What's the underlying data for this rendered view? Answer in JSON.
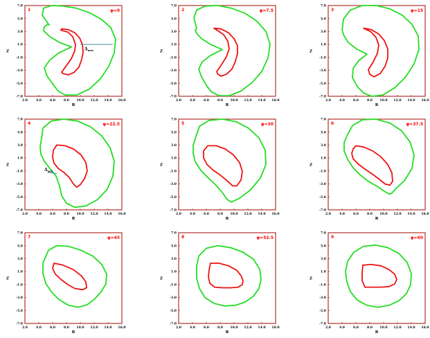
{
  "colors": {
    "frame": "#b0302a",
    "outer_contour": "#22dd22",
    "inner_contour": "#ee1111",
    "panel_label": "#ff0000",
    "annotation_line": "#4a8a9a"
  },
  "chart_data": [
    {
      "type": "line",
      "panel_number": "1",
      "phi_label": "φ=0",
      "xlabel": "R",
      "ylabel": "Z",
      "xlim": [
        2.0,
        16.0
      ],
      "ylim": [
        -7.0,
        7.0
      ],
      "xticks": [
        "2.0",
        "4.0",
        "6.0",
        "8.0",
        "10.0",
        "12.0",
        "14.0",
        "16.0"
      ],
      "yticks": [
        "-7.0",
        "-5.0",
        "-3.0",
        "-1.0",
        "1.0",
        "3.0",
        "5.0",
        "7.0"
      ],
      "annotation": {
        "text": "Δ",
        "sub": "max",
        "line": {
          "x": [
            10.0,
            14.7
          ],
          "y": [
            1.0,
            1.0
          ]
        }
      },
      "series": [
        {
          "role": "outer",
          "x": [
            5.5,
            4.5,
            4.7,
            5.9,
            7.6,
            9.4,
            11.3,
            13.0,
            14.4,
            15.1,
            14.9,
            14.1,
            12.9,
            11.3,
            9.5,
            7.8,
            6.8,
            6.1,
            5.2,
            4.8,
            5.6,
            6.9,
            8.7,
            7.0,
            5.6,
            4.7,
            4.8,
            5.3,
            5.5
          ],
          "y": [
            4.0,
            5.5,
            6.6,
            7.0,
            6.9,
            6.6,
            5.9,
            4.9,
            3.6,
            1.8,
            -0.3,
            -2.4,
            -4.3,
            -5.9,
            -6.8,
            -6.8,
            -6.2,
            -5.2,
            -3.9,
            -2.6,
            -1.4,
            -0.3,
            0.6,
            1.3,
            2.2,
            3.1,
            3.7,
            4.1,
            4.0
          ]
        },
        {
          "role": "inner",
          "x": [
            7.3,
            8.2,
            9.2,
            9.9,
            10.3,
            10.4,
            10.2,
            9.8,
            9.1,
            8.3,
            7.5,
            7.3,
            7.9,
            8.7,
            9.2,
            9.3,
            8.9,
            8.2,
            7.2,
            7.3
          ],
          "y": [
            3.4,
            3.3,
            2.8,
            2.0,
            1.0,
            -0.2,
            -1.3,
            -2.5,
            -3.3,
            -3.7,
            -3.5,
            -3.3,
            -2.4,
            -1.2,
            0.0,
            1.0,
            2.2,
            2.9,
            3.2,
            3.4
          ]
        }
      ]
    },
    {
      "type": "line",
      "panel_number": "2",
      "phi_label": "φ=7.5",
      "xlabel": "R",
      "ylabel": "Z",
      "xlim": [
        2.0,
        16.0
      ],
      "ylim": [
        -7.0,
        7.0
      ],
      "xticks": [
        "2.0",
        "4.0",
        "6.0",
        "8.0",
        "10.0",
        "12.0",
        "14.0",
        "16.0"
      ],
      "yticks": [
        "-7.0",
        "-5.0",
        "-3.0",
        "-1.0",
        "1.0",
        "3.0",
        "5.0",
        "7.0"
      ],
      "series": [
        {
          "role": "outer",
          "x": [
            4.6,
            4.2,
            4.6,
            5.8,
            7.6,
            9.6,
            11.6,
            13.3,
            14.6,
            15.2,
            14.9,
            14.0,
            12.6,
            11.0,
            9.3,
            7.8,
            6.7,
            6.0,
            5.3,
            4.9,
            5.4,
            6.6,
            8.3,
            6.6,
            5.3,
            4.6,
            4.4,
            4.6
          ],
          "y": [
            3.5,
            5.1,
            6.3,
            6.9,
            7.0,
            6.6,
            5.8,
            4.6,
            3.0,
            1.0,
            -1.1,
            -3.2,
            -4.9,
            -6.2,
            -6.9,
            -6.9,
            -6.3,
            -5.3,
            -4.0,
            -2.8,
            -1.7,
            -0.7,
            0.2,
            1.0,
            1.9,
            2.7,
            3.2,
            3.5
          ]
        },
        {
          "role": "inner",
          "x": [
            7.1,
            8.1,
            9.2,
            10.0,
            10.5,
            10.5,
            10.2,
            9.7,
            8.9,
            8.1,
            7.6,
            7.5,
            8.2,
            8.9,
            9.3,
            9.1,
            8.5,
            7.7,
            7.1
          ],
          "y": [
            3.5,
            3.4,
            2.8,
            1.9,
            0.8,
            -0.4,
            -1.6,
            -2.8,
            -3.6,
            -3.9,
            -3.5,
            -3.2,
            -2.1,
            -0.9,
            0.3,
            1.5,
            2.5,
            3.1,
            3.5
          ]
        }
      ]
    },
    {
      "type": "line",
      "panel_number": "3",
      "phi_label": "φ=15",
      "xlabel": "R",
      "ylabel": "Z",
      "xlim": [
        2.0,
        16.0
      ],
      "ylim": [
        -7.0,
        7.0
      ],
      "xticks": [
        "2.0",
        "4.0",
        "6.0",
        "8.0",
        "10.0",
        "12.0",
        "14.0",
        "16.0"
      ],
      "yticks": [
        "-7.0",
        "-5.0",
        "-3.0",
        "-1.0",
        "1.0",
        "3.0",
        "5.0",
        "7.0"
      ],
      "series": [
        {
          "role": "outer",
          "x": [
            4.0,
            4.2,
            5.2,
            6.9,
            8.9,
            10.9,
            12.7,
            14.1,
            15.0,
            15.1,
            14.4,
            13.2,
            11.6,
            9.9,
            8.3,
            7.1,
            6.2,
            5.5,
            5.6,
            6.4,
            7.6,
            6.1,
            4.9,
            4.3,
            4.0
          ],
          "y": [
            3.2,
            4.9,
            6.3,
            7.0,
            7.0,
            6.5,
            5.5,
            4.1,
            2.3,
            0.2,
            -2.0,
            -4.0,
            -5.7,
            -6.8,
            -7.0,
            -6.5,
            -5.5,
            -4.1,
            -2.7,
            -1.5,
            -0.5,
            0.3,
            1.3,
            2.3,
            3.2
          ]
        },
        {
          "role": "inner",
          "x": [
            7.1,
            8.2,
            9.3,
            10.1,
            10.6,
            10.6,
            10.2,
            9.5,
            8.6,
            8.0,
            7.8,
            8.5,
            9.1,
            9.3,
            8.9,
            8.1,
            7.1
          ],
          "y": [
            3.5,
            3.3,
            2.6,
            1.6,
            0.3,
            -1.1,
            -2.4,
            -3.5,
            -4.0,
            -3.6,
            -2.9,
            -1.7,
            -0.4,
            0.9,
            2.1,
            3.0,
            3.5
          ]
        }
      ]
    },
    {
      "type": "line",
      "panel_number": "4",
      "phi_label": "φ=22.5",
      "xlabel": "R",
      "ylabel": "Z",
      "xlim": [
        2.0,
        16.0
      ],
      "ylim": [
        -7.0,
        7.0
      ],
      "xticks": [
        "2.0",
        "4.0",
        "6.0",
        "8.0",
        "10.0",
        "12.0",
        "14.0",
        "16.0"
      ],
      "yticks": [
        "-7.0",
        "-5.0",
        "-3.0",
        "-1.0",
        "1.0",
        "3.0",
        "5.0",
        "7.0"
      ],
      "annotation": {
        "text": "Δ",
        "sub": "min",
        "line": {
          "x": [
            5.3,
            6.6
          ],
          "y": [
            -1.2,
            -1.4
          ]
        }
      },
      "series": [
        {
          "role": "outer",
          "x": [
            4.4,
            4.6,
            5.8,
            7.6,
            9.6,
            11.5,
            13.1,
            14.3,
            14.9,
            14.7,
            13.9,
            12.5,
            10.8,
            9.2,
            8.0,
            7.3,
            7.0,
            6.5,
            5.6,
            4.8,
            4.3,
            4.2,
            4.4
          ],
          "y": [
            4.0,
            5.6,
            6.7,
            7.0,
            6.7,
            5.8,
            4.4,
            2.6,
            0.5,
            -1.8,
            -3.8,
            -5.4,
            -6.4,
            -6.6,
            -6.0,
            -4.8,
            -3.3,
            -1.8,
            -0.6,
            0.5,
            1.6,
            2.8,
            4.0
          ]
        },
        {
          "role": "inner",
          "x": [
            6.6,
            7.8,
            9.0,
            10.1,
            10.8,
            11.0,
            10.6,
            10.0,
            9.5,
            9.0,
            8.4,
            7.6,
            6.8,
            6.2,
            6.0,
            6.1,
            6.6
          ],
          "y": [
            3.0,
            2.9,
            2.4,
            1.5,
            0.3,
            -1.0,
            -2.2,
            -3.1,
            -3.5,
            -3.0,
            -2.0,
            -1.2,
            -0.6,
            0.2,
            1.1,
            2.2,
            3.0
          ]
        }
      ]
    },
    {
      "type": "line",
      "panel_number": "5",
      "phi_label": "φ=30",
      "xlabel": "R",
      "ylabel": "Z",
      "xlim": [
        2.0,
        16.0
      ],
      "ylim": [
        -7.0,
        7.0
      ],
      "xticks": [
        "2.0",
        "4.0",
        "6.0",
        "8.0",
        "10.0",
        "12.0",
        "14.0",
        "16.0"
      ],
      "yticks": [
        "-7.0",
        "-5.0",
        "-3.0",
        "-1.0",
        "1.0",
        "3.0",
        "5.0",
        "7.0"
      ],
      "series": [
        {
          "role": "outer",
          "x": [
            4.5,
            5.0,
            6.4,
            8.3,
            10.3,
            12.1,
            13.6,
            14.5,
            14.6,
            13.8,
            12.4,
            10.8,
            9.6,
            9.0,
            8.3,
            7.3,
            6.2,
            5.2,
            4.4,
            4.1,
            4.1,
            4.5
          ],
          "y": [
            4.3,
            5.9,
            6.8,
            7.0,
            6.6,
            5.6,
            4.1,
            2.2,
            0.0,
            -2.1,
            -3.9,
            -5.2,
            -5.8,
            -5.4,
            -4.3,
            -3.1,
            -2.0,
            -0.9,
            0.4,
            1.7,
            3.0,
            4.3
          ]
        },
        {
          "role": "inner",
          "x": [
            6.2,
            7.4,
            8.7,
            9.9,
            10.8,
            11.2,
            11.0,
            10.4,
            9.8,
            9.1,
            8.1,
            7.0,
            6.1,
            5.6,
            5.6,
            6.2
          ],
          "y": [
            2.9,
            2.9,
            2.4,
            1.5,
            0.3,
            -1.1,
            -2.4,
            -3.3,
            -3.3,
            -2.6,
            -1.7,
            -0.9,
            0.0,
            1.0,
            2.1,
            2.9
          ]
        }
      ]
    },
    {
      "type": "line",
      "panel_number": "6",
      "phi_label": "φ=37.5",
      "xlabel": "R",
      "ylabel": "Z",
      "xlim": [
        2.0,
        16.0
      ],
      "ylim": [
        -7.0,
        7.0
      ],
      "xticks": [
        "2.0",
        "4.0",
        "6.0",
        "8.0",
        "10.0",
        "12.0",
        "14.0",
        "16.0"
      ],
      "yticks": [
        "-7.0",
        "-5.0",
        "-3.0",
        "-1.0",
        "1.0",
        "3.0",
        "5.0",
        "7.0"
      ],
      "series": [
        {
          "role": "outer",
          "x": [
            4.7,
            5.5,
            7.0,
            8.9,
            10.9,
            12.6,
            13.8,
            14.4,
            14.1,
            13.0,
            11.8,
            11.2,
            10.9,
            10.2,
            9.1,
            7.8,
            6.6,
            5.6,
            4.8,
            4.3,
            4.3,
            4.7
          ],
          "y": [
            4.4,
            6.0,
            6.9,
            7.0,
            6.4,
            5.2,
            3.5,
            1.5,
            -0.6,
            -2.5,
            -3.7,
            -4.4,
            -4.6,
            -4.2,
            -3.4,
            -2.6,
            -1.6,
            -0.5,
            0.8,
            2.1,
            3.4,
            4.4
          ]
        },
        {
          "role": "inner",
          "x": [
            6.0,
            7.1,
            8.4,
            9.6,
            10.6,
            11.2,
            11.3,
            10.9,
            10.2,
            9.4,
            8.4,
            7.3,
            6.3,
            5.6,
            5.4,
            5.6,
            6.0
          ],
          "y": [
            2.9,
            2.7,
            2.1,
            1.2,
            0.0,
            -1.3,
            -2.6,
            -3.2,
            -3.0,
            -2.3,
            -1.5,
            -0.7,
            0.1,
            0.9,
            1.7,
            2.4,
            2.9
          ]
        }
      ]
    },
    {
      "type": "line",
      "panel_number": "7",
      "phi_label": "φ=45",
      "xlabel": "R",
      "ylabel": "Z",
      "xlim": [
        2.0,
        16.0
      ],
      "ylim": [
        -7.0,
        7.0
      ],
      "xticks": [
        "2.0",
        "4.0",
        "6.0",
        "8.0",
        "10.0",
        "12.0",
        "14.0",
        "16.0"
      ],
      "yticks": [
        "-7.0",
        "-5.0",
        "-3.0",
        "-1.0",
        "1.0",
        "3.0",
        "5.0",
        "7.0"
      ],
      "series": [
        {
          "role": "outer",
          "x": [
            5.4,
            6.6,
            8.3,
            10.1,
            11.8,
            13.1,
            13.8,
            13.7,
            13.0,
            12.1,
            11.0,
            9.7,
            8.3,
            6.9,
            5.8,
            5.0,
            4.6,
            4.6,
            5.4
          ],
          "y": [
            4.3,
            5.0,
            4.9,
            4.3,
            3.4,
            2.1,
            0.6,
            -0.9,
            -2.1,
            -3.2,
            -4.1,
            -4.5,
            -4.2,
            -3.3,
            -2.1,
            -0.8,
            0.7,
            2.3,
            4.3
          ]
        },
        {
          "role": "inner",
          "x": [
            6.2,
            7.5,
            9.0,
            10.2,
            10.8,
            10.9,
            10.3,
            9.2,
            8.2,
            7.2,
            6.4,
            6.0,
            6.2
          ],
          "y": [
            2.3,
            2.0,
            1.3,
            0.3,
            -0.6,
            -1.5,
            -1.8,
            -1.6,
            -1.0,
            -0.2,
            0.6,
            1.5,
            2.3
          ]
        }
      ]
    },
    {
      "type": "line",
      "panel_number": "8",
      "phi_label": "φ=52.5",
      "xlabel": "R",
      "ylabel": "Z",
      "xlim": [
        2.0,
        16.0
      ],
      "ylim": [
        -7.0,
        7.0
      ],
      "xticks": [
        "2.0",
        "4.0",
        "6.0",
        "8.0",
        "10.0",
        "12.0",
        "14.0",
        "16.0"
      ],
      "yticks": [
        "-7.0",
        "-5.0",
        "-3.0",
        "-1.0",
        "1.0",
        "3.0",
        "5.0",
        "7.0"
      ],
      "series": [
        {
          "role": "outer",
          "x": [
            4.9,
            6.0,
            7.6,
            9.5,
            11.3,
            12.8,
            13.7,
            13.9,
            13.6,
            12.8,
            11.6,
            10.2,
            8.6,
            7.1,
            5.8,
            5.0,
            4.6,
            4.6,
            4.9
          ],
          "y": [
            3.4,
            4.6,
            5.0,
            4.7,
            4.0,
            2.9,
            1.4,
            -0.2,
            -1.6,
            -2.8,
            -3.7,
            -4.2,
            -4.3,
            -3.9,
            -3.0,
            -1.6,
            0.0,
            1.8,
            3.4
          ]
        },
        {
          "role": "inner",
          "x": [
            6.6,
            7.8,
            9.2,
            10.4,
            11.0,
            11.3,
            11.2,
            10.6,
            9.6,
            8.4,
            7.2,
            6.5,
            6.3,
            6.4,
            6.6
          ],
          "y": [
            2.3,
            2.3,
            1.9,
            1.2,
            0.4,
            -0.4,
            -1.0,
            -1.4,
            -1.5,
            -1.5,
            -1.4,
            -0.8,
            0.2,
            1.3,
            2.3
          ]
        }
      ]
    },
    {
      "type": "line",
      "panel_number": "9",
      "phi_label": "φ=60",
      "xlabel": "R",
      "ylabel": "Z",
      "xlim": [
        2.0,
        16.0
      ],
      "ylim": [
        -7.0,
        7.0
      ],
      "xticks": [
        "2.0",
        "4.0",
        "6.0",
        "8.0",
        "10.0",
        "12.0",
        "14.0",
        "16.0"
      ],
      "yticks": [
        "-7.0",
        "-5.0",
        "-3.0",
        "-1.0",
        "1.0",
        "3.0",
        "5.0",
        "7.0"
      ],
      "series": [
        {
          "role": "outer",
          "x": [
            4.8,
            5.7,
            7.1,
            8.8,
            10.6,
            12.2,
            13.4,
            14.0,
            13.9,
            13.3,
            12.2,
            10.8,
            9.2,
            7.6,
            6.2,
            5.2,
            4.7,
            4.5,
            4.8
          ],
          "y": [
            2.6,
            4.0,
            4.9,
            5.1,
            4.7,
            3.8,
            2.4,
            0.7,
            -1.0,
            -2.4,
            -3.5,
            -4.2,
            -4.5,
            -4.2,
            -3.4,
            -2.1,
            -0.6,
            1.0,
            2.6
          ]
        },
        {
          "role": "inner",
          "x": [
            7.0,
            8.2,
            9.6,
            10.8,
            11.6,
            11.9,
            11.6,
            10.8,
            9.7,
            8.4,
            7.3,
            6.9,
            6.9,
            7.0
          ],
          "y": [
            2.0,
            2.1,
            1.9,
            1.3,
            0.6,
            -0.2,
            -0.9,
            -1.3,
            -1.4,
            -1.4,
            -1.4,
            -0.4,
            0.8,
            2.0
          ]
        }
      ]
    }
  ]
}
